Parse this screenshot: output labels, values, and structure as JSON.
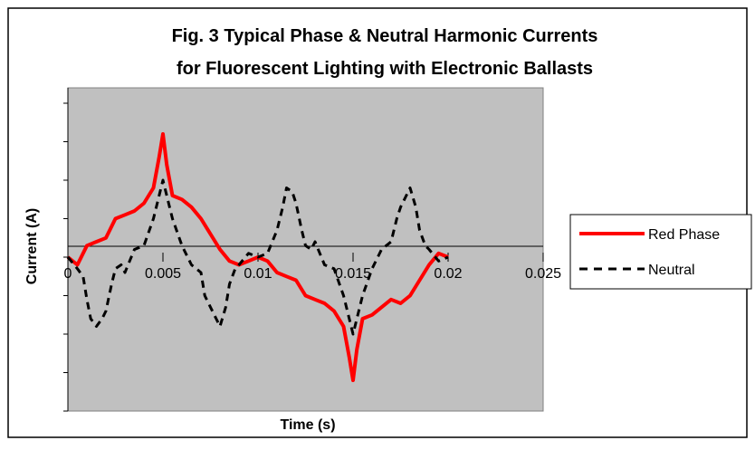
{
  "chart_data": {
    "type": "line",
    "title_line1": "Fig. 3 Typical Phase & Neutral Harmonic Currents",
    "title_line2": "for Fluorescent Lighting with Electronic Ballasts",
    "xlabel": "Time (s)",
    "ylabel": "Current (A)",
    "xlim": [
      0,
      0.025
    ],
    "ylim": [
      -4,
      4.4
    ],
    "x_ticks": [
      0,
      0.005,
      0.01,
      0.015,
      0.02,
      0.025
    ],
    "x_tick_labels": [
      "0",
      "0.005",
      "0.01",
      "0.015",
      "0.02",
      "0.025"
    ],
    "y_ticks": [
      -4,
      -3,
      -2,
      -1,
      0,
      1,
      2,
      3,
      4
    ],
    "grid": false,
    "legend_position": "right",
    "plot_background": "#c0c0c0",
    "series": [
      {
        "name": "Red Phase",
        "color": "#ff0000",
        "dash": "solid",
        "x": [
          0,
          0.0005,
          0.001,
          0.0015,
          0.002,
          0.0025,
          0.003,
          0.0035,
          0.004,
          0.0045,
          0.0048,
          0.005,
          0.0052,
          0.0055,
          0.006,
          0.0065,
          0.007,
          0.0075,
          0.008,
          0.0085,
          0.009,
          0.0095,
          0.01,
          0.0105,
          0.011,
          0.0115,
          0.012,
          0.0125,
          0.013,
          0.0135,
          0.014,
          0.0145,
          0.0148,
          0.015,
          0.0152,
          0.0155,
          0.016,
          0.0165,
          0.017,
          0.0175,
          0.018,
          0.0185,
          0.019,
          0.0195,
          0.02
        ],
        "values": [
          0,
          -0.2,
          0.3,
          0.4,
          0.5,
          1.0,
          1.1,
          1.2,
          1.4,
          1.8,
          2.6,
          3.2,
          2.4,
          1.6,
          1.5,
          1.3,
          1.0,
          0.6,
          0.2,
          -0.1,
          -0.2,
          -0.1,
          0,
          -0.1,
          -0.4,
          -0.5,
          -0.6,
          -1.0,
          -1.1,
          -1.2,
          -1.4,
          -1.8,
          -2.6,
          -3.2,
          -2.4,
          -1.6,
          -1.5,
          -1.3,
          -1.1,
          -1.2,
          -1.0,
          -0.6,
          -0.2,
          0.1,
          0
        ]
      },
      {
        "name": "Neutral",
        "color": "#000000",
        "dash": "dashed",
        "x": [
          0,
          0.0005,
          0.0008,
          0.001,
          0.0012,
          0.0015,
          0.0018,
          0.002,
          0.0023,
          0.0025,
          0.0028,
          0.003,
          0.0035,
          0.004,
          0.0045,
          0.0048,
          0.005,
          0.0052,
          0.0055,
          0.006,
          0.0065,
          0.007,
          0.0072,
          0.0075,
          0.0078,
          0.008,
          0.0083,
          0.0085,
          0.0088,
          0.009,
          0.0095,
          0.01,
          0.0105,
          0.011,
          0.0113,
          0.0115,
          0.0118,
          0.012,
          0.0123,
          0.0125,
          0.0128,
          0.013,
          0.0135,
          0.014,
          0.0145,
          0.0148,
          0.015,
          0.0152,
          0.0155,
          0.016,
          0.0165,
          0.017,
          0.0173,
          0.0175,
          0.0178,
          0.018,
          0.0183,
          0.0185,
          0.0188,
          0.019,
          0.0195,
          0.02
        ],
        "values": [
          0,
          -0.3,
          -0.5,
          -1.1,
          -1.6,
          -1.8,
          -1.6,
          -1.4,
          -0.7,
          -0.3,
          -0.2,
          -0.4,
          0.2,
          0.3,
          1.0,
          1.6,
          2.0,
          1.6,
          1.0,
          0.3,
          -0.2,
          -0.4,
          -1.0,
          -1.3,
          -1.6,
          -1.8,
          -1.3,
          -0.7,
          -0.3,
          -0.2,
          0.1,
          0,
          0.1,
          0.7,
          1.3,
          1.8,
          1.7,
          1.4,
          0.7,
          0.3,
          0.2,
          0.4,
          -0.2,
          -0.3,
          -1.0,
          -1.6,
          -2.0,
          -1.6,
          -1.0,
          -0.3,
          0.2,
          0.4,
          1.0,
          1.3,
          1.6,
          1.8,
          1.3,
          0.7,
          0.3,
          0.2,
          -0.1,
          0
        ]
      }
    ]
  }
}
